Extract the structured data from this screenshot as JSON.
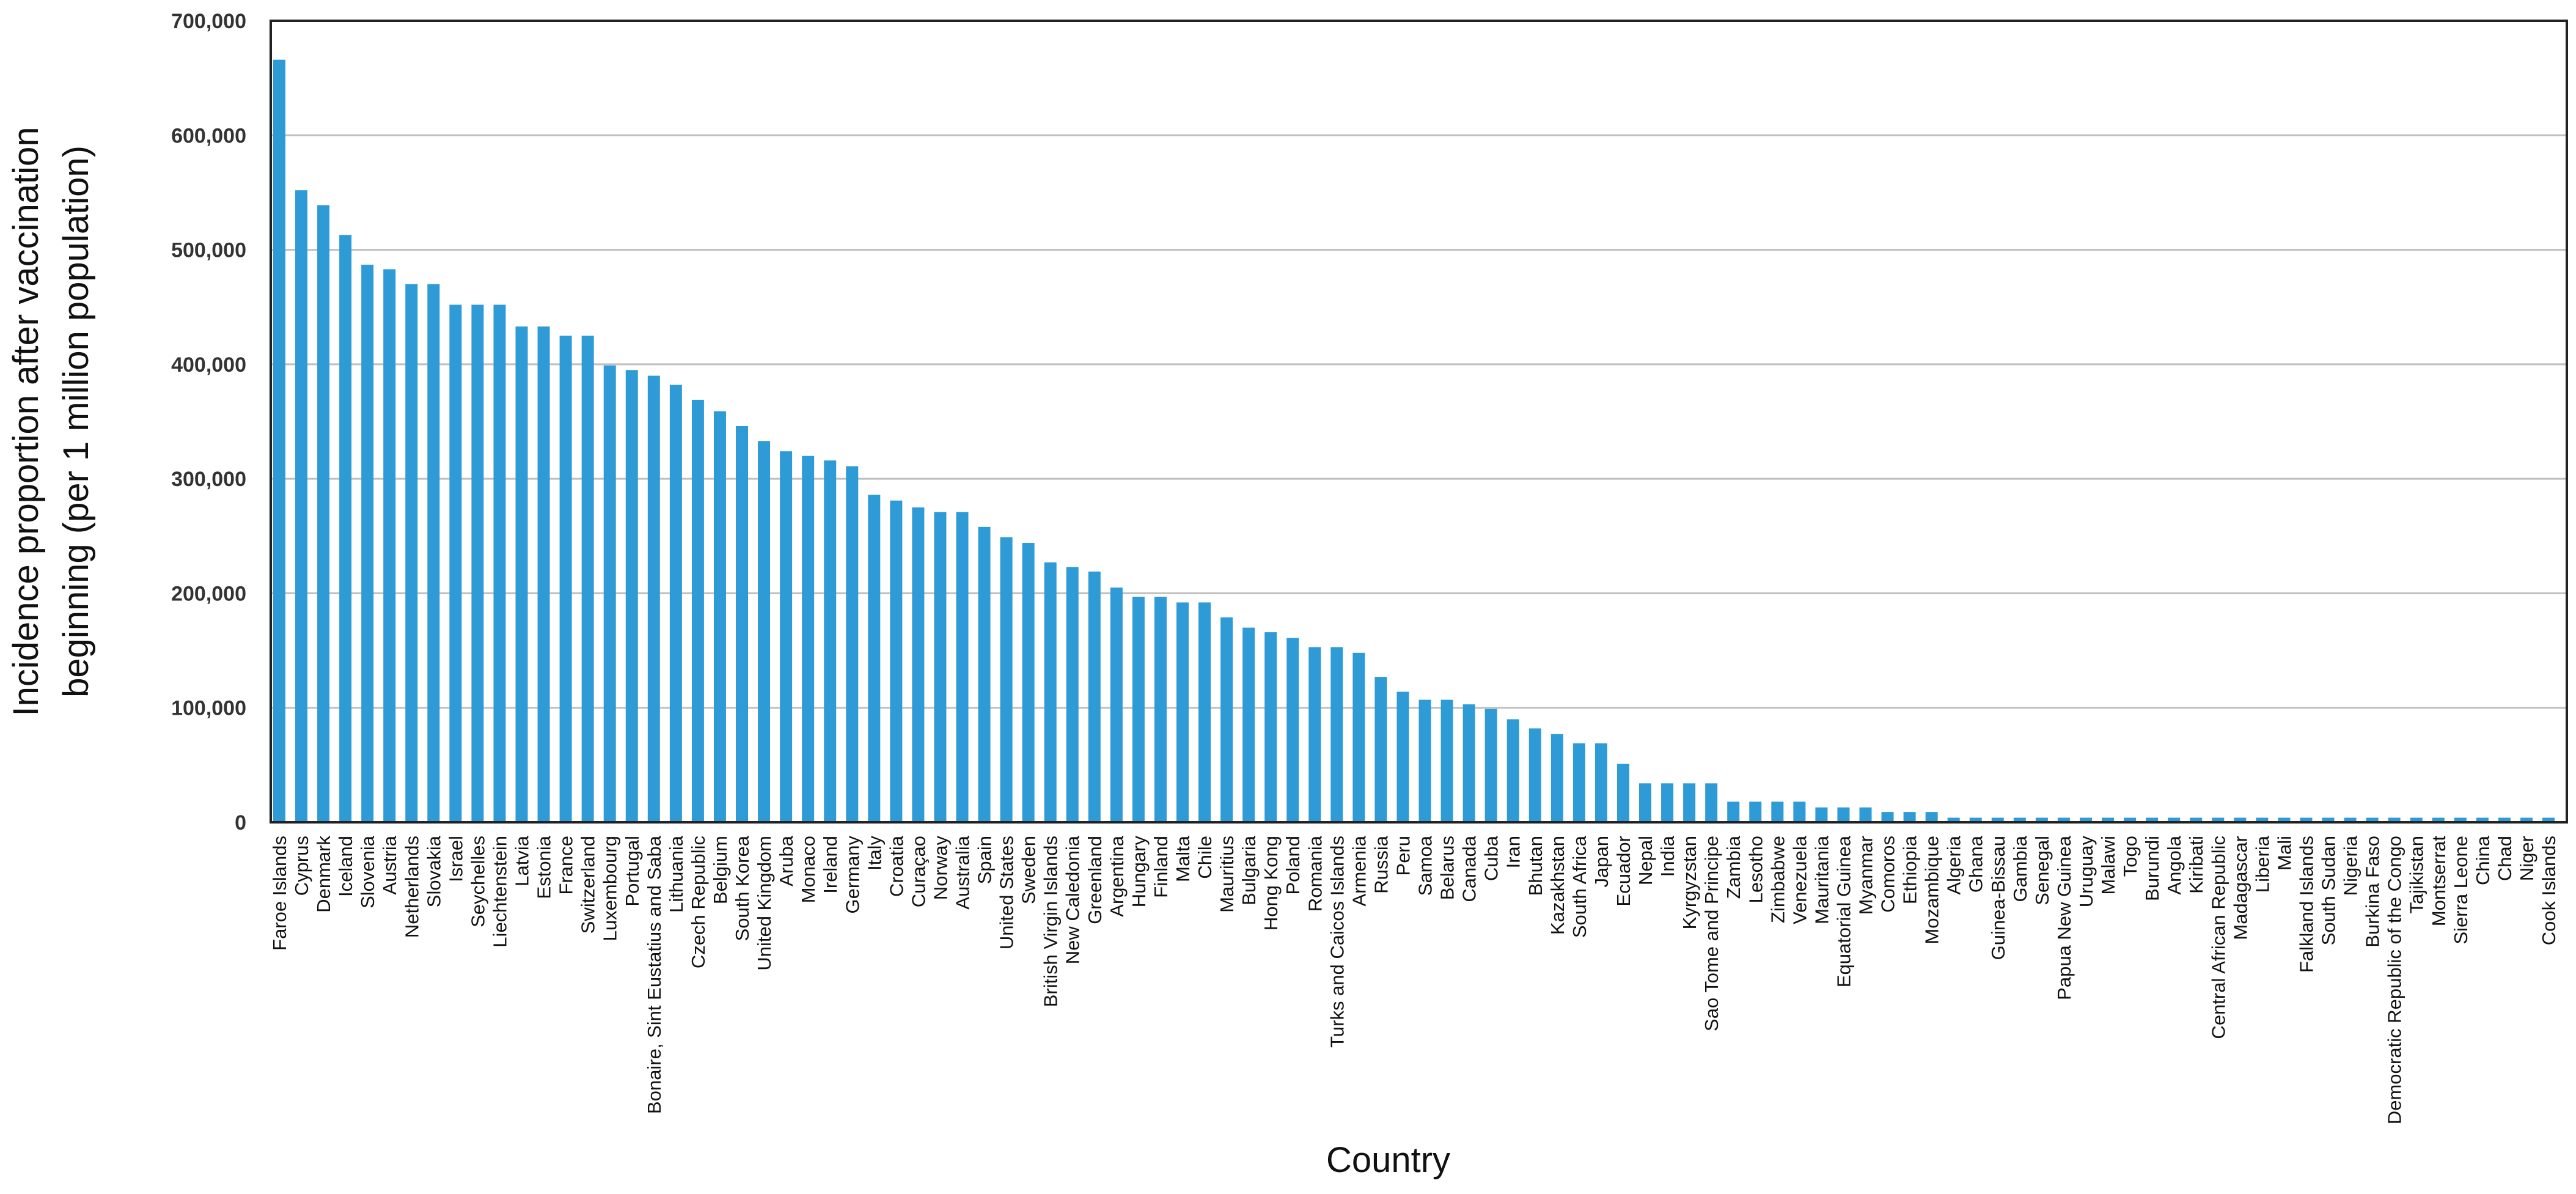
{
  "chart_data": {
    "type": "bar",
    "title": "",
    "xlabel": "Country",
    "ylabel_lines": [
      "Incidence proportion after vaccination",
      "beginning (per 1 million population)"
    ],
    "ylim": [
      0,
      700000
    ],
    "yticks": [
      0,
      100000,
      200000,
      300000,
      400000,
      500000,
      600000,
      700000
    ],
    "ytick_labels": [
      "0",
      "100,000",
      "200,000",
      "300,000",
      "400,000",
      "500,000",
      "600,000",
      "700,000"
    ],
    "grid": "horizontal",
    "bar_color": "#2E9BD6",
    "categories": [
      "Faroe Islands",
      "Cyprus",
      "Denmark",
      "Iceland",
      "Slovenia",
      "Austria",
      "Netherlands",
      "Slovakia",
      "Israel",
      "Seychelles",
      "Liechtenstein",
      "Latvia",
      "Estonia",
      "France",
      "Switzerland",
      "Luxembourg",
      "Portugal",
      "Bonaire, Sint Eustatius and Saba",
      "Lithuania",
      "Czech Republic",
      "Belgium",
      "South Korea",
      "United Kingdom",
      "Aruba",
      "Monaco",
      "Ireland",
      "Germany",
      "Italy",
      "Croatia",
      "Curaçao",
      "Norway",
      "Australia",
      "Spain",
      "United States",
      "Sweden",
      "British Virgin Islands",
      "New Caledonia",
      "Greenland",
      "Argentina",
      "Hungary",
      "Finland",
      "Malta",
      "Chile",
      "Mauritius",
      "Bulgaria",
      "Hong Kong",
      "Poland",
      "Romania",
      "Turks and Caicos Islands",
      "Armenia",
      "Russia",
      "Peru",
      "Samoa",
      "Belarus",
      "Canada",
      "Cuba",
      "Iran",
      "Bhutan",
      "Kazakhstan",
      "South Africa",
      "Japan",
      "Ecuador",
      "Nepal",
      "India",
      "Kyrgyzstan",
      "Sao Tome and Principe",
      "Zambia",
      "Lesotho",
      "Zimbabwe",
      "Venezuela",
      "Mauritania",
      "Equatorial Guinea",
      "Myanmar",
      "Comoros",
      "Ethiopia",
      "Mozambique",
      "Algeria",
      "Ghana",
      "Guinea-Bissau",
      "Gambia",
      "Senegal",
      "Papua New Guinea",
      "Uruguay",
      "Malawi",
      "Togo",
      "Burundi",
      "Angola",
      "Kiribati",
      "Central African Republic",
      "Madagascar",
      "Liberia",
      "Mali",
      "Falkland Islands",
      "South Sudan",
      "Nigeria",
      "Burkina Faso",
      "Democratic Republic of the Congo",
      "Tajikistan",
      "Montserrat",
      "Sierra Leone",
      "China",
      "Chad",
      "Niger",
      "Cook Islands"
    ],
    "values": [
      666000,
      552000,
      539000,
      513000,
      487000,
      483000,
      470000,
      470000,
      452000,
      452000,
      452000,
      433000,
      433000,
      425000,
      425000,
      399000,
      395000,
      390000,
      382000,
      369000,
      359000,
      346000,
      333000,
      324000,
      320000,
      316000,
      311000,
      286000,
      281000,
      275000,
      271000,
      271000,
      258000,
      249000,
      244000,
      227000,
      223000,
      219000,
      205000,
      197000,
      197000,
      192000,
      192000,
      179000,
      170000,
      166000,
      161000,
      153000,
      153000,
      148000,
      127000,
      114000,
      107000,
      107000,
      103000,
      99000,
      90000,
      82000,
      77000,
      69000,
      69000,
      51000,
      34000,
      34000,
      34000,
      34000,
      18000,
      18000,
      18000,
      18000,
      13000,
      13000,
      13000,
      9000,
      9000,
      9000,
      4000,
      4000,
      4000,
      4000,
      4000,
      4000,
      4000,
      4000,
      4000,
      4000,
      4000,
      4000,
      4000,
      4000,
      4000,
      4000,
      4000,
      4000,
      4000,
      4000,
      4000,
      4000,
      4000,
      4000,
      4000,
      4000,
      4000,
      4000
    ]
  }
}
